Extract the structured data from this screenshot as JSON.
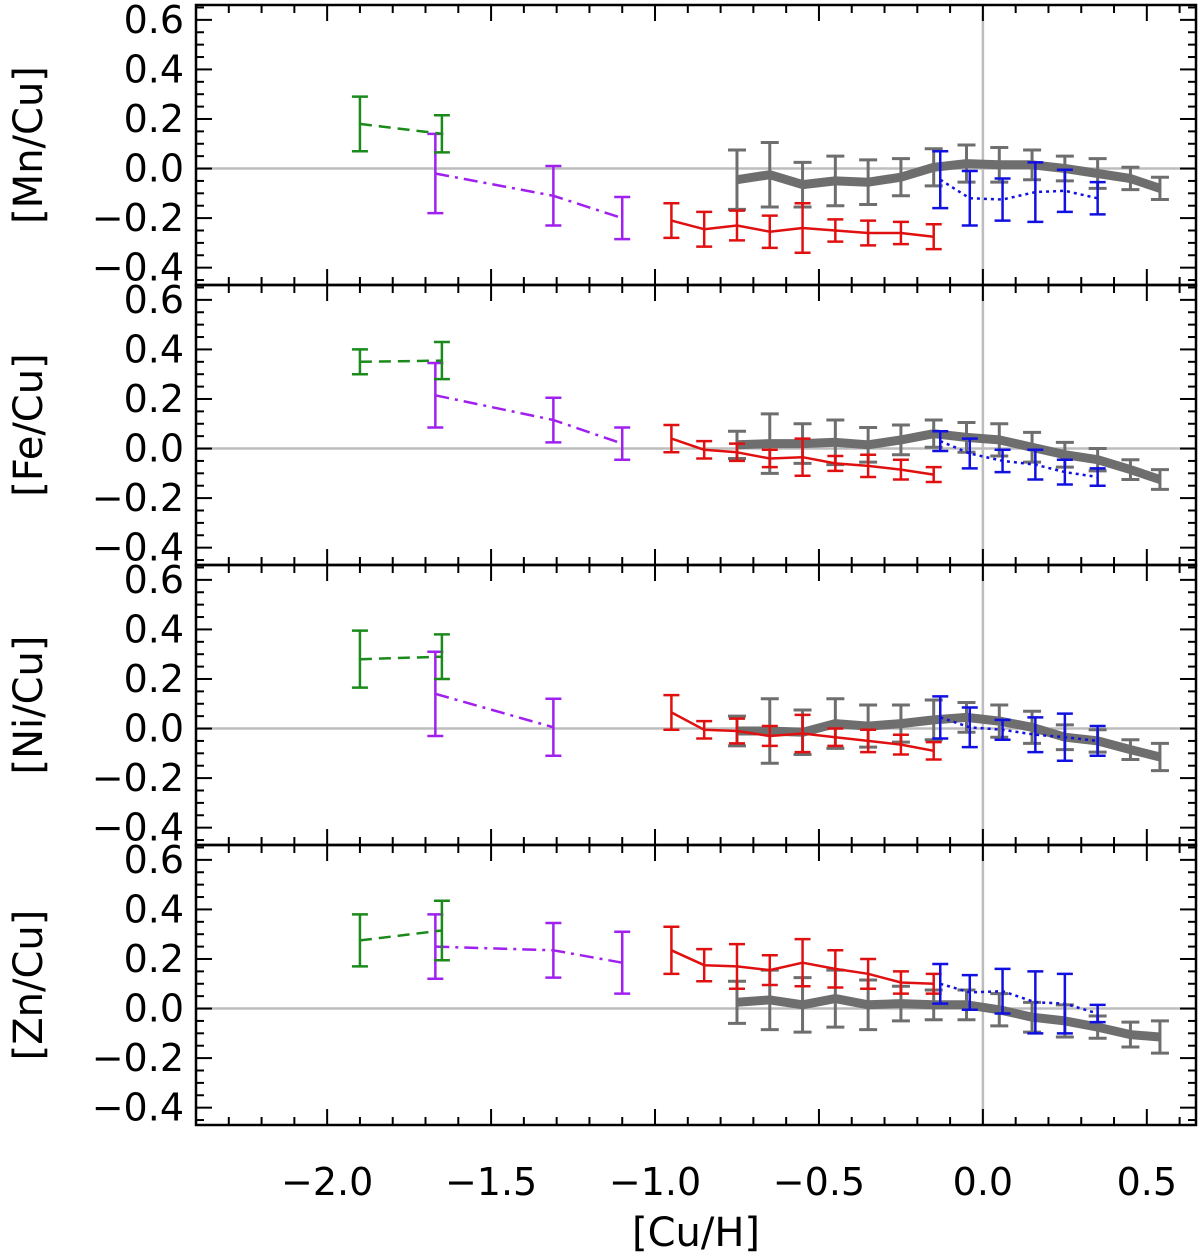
{
  "chart_data": {
    "type": "line",
    "xlabel": "[Cu/H]",
    "xlim": [
      -2.4,
      0.65
    ],
    "xticks": [
      -2.0,
      -1.5,
      -1.0,
      -0.5,
      0.0,
      0.5
    ],
    "xtick_labels": [
      "−2.0",
      "−1.5",
      "−1.0",
      "−0.5",
      "0.0",
      "0.5"
    ],
    "ylim": [
      -0.47,
      0.66
    ],
    "yticks": [
      0.6,
      0.4,
      0.2,
      0.0,
      -0.2,
      -0.4
    ],
    "ytick_labels": [
      "0.6",
      "0.4",
      "0.2",
      "0.0",
      "−0.2",
      "−0.4"
    ],
    "reference_lines": {
      "horizontal_y": 0.0,
      "vertical_x": 0.0
    },
    "panels": [
      {
        "ylabel": "[Mn/Cu]",
        "series": [
          {
            "name": "green",
            "color": "#1a8a1a",
            "style": "dashed",
            "x": [
              -1.9,
              -1.65
            ],
            "y": [
              0.18,
              0.14
            ],
            "err": [
              0.11,
              0.075
            ]
          },
          {
            "name": "purple",
            "color": "#a020f0",
            "style": "dashdot",
            "x": [
              -1.67,
              -1.31,
              -1.1
            ],
            "y": [
              -0.02,
              -0.11,
              -0.2
            ],
            "err": [
              0.16,
              0.12,
              0.085
            ]
          },
          {
            "name": "red",
            "color": "#e01010",
            "style": "solid",
            "x": [
              -0.95,
              -0.85,
              -0.75,
              -0.65,
              -0.55,
              -0.45,
              -0.35,
              -0.25,
              -0.15
            ],
            "y": [
              -0.21,
              -0.245,
              -0.23,
              -0.255,
              -0.24,
              -0.25,
              -0.26,
              -0.26,
              -0.275
            ],
            "err": [
              0.07,
              0.07,
              0.06,
              0.065,
              0.1,
              0.045,
              0.05,
              0.045,
              0.05
            ]
          },
          {
            "name": "gray",
            "color": "#6e6e6e",
            "style": "thick",
            "x": [
              -0.75,
              -0.65,
              -0.55,
              -0.45,
              -0.35,
              -0.25,
              -0.15,
              -0.05,
              0.05,
              0.15,
              0.25,
              0.35,
              0.45,
              0.54
            ],
            "y": [
              -0.045,
              -0.025,
              -0.065,
              -0.05,
              -0.055,
              -0.035,
              0.005,
              0.02,
              0.015,
              0.015,
              0.0,
              -0.02,
              -0.04,
              -0.08
            ],
            "err": [
              0.12,
              0.13,
              0.09,
              0.1,
              0.09,
              0.075,
              0.075,
              0.075,
              0.07,
              0.06,
              0.05,
              0.06,
              0.045,
              0.045
            ]
          },
          {
            "name": "blue",
            "color": "#1010e0",
            "style": "dotted",
            "x": [
              -0.13,
              -0.04,
              0.06,
              0.16,
              0.25,
              0.35
            ],
            "y": [
              -0.045,
              -0.12,
              -0.125,
              -0.095,
              -0.09,
              -0.12
            ],
            "err": [
              0.115,
              0.11,
              0.085,
              0.12,
              0.085,
              0.065
            ]
          }
        ]
      },
      {
        "ylabel": "[Fe/Cu]",
        "series": [
          {
            "name": "green",
            "color": "#1a8a1a",
            "style": "dashed",
            "x": [
              -1.9,
              -1.65
            ],
            "y": [
              0.35,
              0.355
            ],
            "err": [
              0.05,
              0.075
            ]
          },
          {
            "name": "purple",
            "color": "#a020f0",
            "style": "dashdot",
            "x": [
              -1.67,
              -1.31,
              -1.1
            ],
            "y": [
              0.215,
              0.115,
              0.02
            ],
            "err": [
              0.13,
              0.09,
              0.065
            ]
          },
          {
            "name": "red",
            "color": "#e01010",
            "style": "solid",
            "x": [
              -0.95,
              -0.85,
              -0.75,
              -0.65,
              -0.55,
              -0.45,
              -0.35,
              -0.25,
              -0.15
            ],
            "y": [
              0.04,
              -0.005,
              -0.015,
              -0.04,
              -0.035,
              -0.06,
              -0.07,
              -0.085,
              -0.105
            ],
            "err": [
              0.055,
              0.035,
              0.035,
              0.035,
              0.075,
              0.03,
              0.045,
              0.04,
              0.03
            ]
          },
          {
            "name": "gray",
            "color": "#6e6e6e",
            "style": "thick",
            "x": [
              -0.75,
              -0.65,
              -0.55,
              -0.45,
              -0.35,
              -0.25,
              -0.15,
              -0.05,
              0.05,
              0.15,
              0.25,
              0.35,
              0.45,
              0.54
            ],
            "y": [
              0.015,
              0.02,
              0.02,
              0.025,
              0.015,
              0.035,
              0.06,
              0.045,
              0.035,
              0.005,
              -0.025,
              -0.045,
              -0.085,
              -0.125
            ],
            "err": [
              0.055,
              0.12,
              0.08,
              0.09,
              0.07,
              0.06,
              0.055,
              0.06,
              0.065,
              0.06,
              0.05,
              0.045,
              0.04,
              0.04
            ]
          },
          {
            "name": "blue",
            "color": "#1010e0",
            "style": "dotted",
            "x": [
              -0.13,
              -0.04,
              0.06,
              0.16,
              0.25,
              0.35
            ],
            "y": [
              0.03,
              -0.02,
              -0.05,
              -0.065,
              -0.095,
              -0.115
            ],
            "err": [
              0.04,
              0.06,
              0.045,
              0.06,
              0.05,
              0.035
            ]
          }
        ]
      },
      {
        "ylabel": "[Ni/Cu]",
        "series": [
          {
            "name": "green",
            "color": "#1a8a1a",
            "style": "dashed",
            "x": [
              -1.9,
              -1.65
            ],
            "y": [
              0.28,
              0.29
            ],
            "err": [
              0.115,
              0.09
            ]
          },
          {
            "name": "purple",
            "color": "#a020f0",
            "style": "dashdot",
            "x": [
              -1.67,
              -1.31
            ],
            "y": [
              0.14,
              0.005
            ],
            "err": [
              0.17,
              0.115
            ]
          },
          {
            "name": "red",
            "color": "#e01010",
            "style": "solid",
            "x": [
              -0.95,
              -0.85,
              -0.75,
              -0.65,
              -0.55,
              -0.45,
              -0.35,
              -0.25,
              -0.15
            ],
            "y": [
              0.065,
              -0.005,
              -0.01,
              -0.03,
              -0.02,
              -0.035,
              -0.05,
              -0.065,
              -0.09
            ],
            "err": [
              0.07,
              0.035,
              0.05,
              0.04,
              0.075,
              0.035,
              0.045,
              0.04,
              0.035
            ]
          },
          {
            "name": "gray",
            "color": "#6e6e6e",
            "style": "thick",
            "x": [
              -0.75,
              -0.65,
              -0.55,
              -0.45,
              -0.35,
              -0.25,
              -0.15,
              -0.05,
              0.05,
              0.15,
              0.25,
              0.35,
              0.45,
              0.54
            ],
            "y": [
              -0.01,
              -0.01,
              -0.015,
              0.02,
              0.01,
              0.02,
              0.035,
              0.045,
              0.03,
              0.005,
              -0.035,
              -0.05,
              -0.085,
              -0.115
            ],
            "err": [
              0.06,
              0.13,
              0.09,
              0.1,
              0.085,
              0.075,
              0.08,
              0.06,
              0.065,
              0.065,
              0.05,
              0.045,
              0.04,
              0.055
            ]
          },
          {
            "name": "blue",
            "color": "#1010e0",
            "style": "dotted",
            "x": [
              -0.13,
              -0.04,
              0.06,
              0.16,
              0.25,
              0.35
            ],
            "y": [
              0.045,
              0.005,
              -0.005,
              -0.025,
              -0.035,
              -0.05
            ],
            "err": [
              0.085,
              0.08,
              0.04,
              0.07,
              0.095,
              0.06
            ]
          }
        ]
      },
      {
        "ylabel": "[Zn/Cu]",
        "series": [
          {
            "name": "green",
            "color": "#1a8a1a",
            "style": "dashed",
            "x": [
              -1.9,
              -1.65
            ],
            "y": [
              0.275,
              0.315
            ],
            "err": [
              0.105,
              0.12
            ]
          },
          {
            "name": "purple",
            "color": "#a020f0",
            "style": "dashdot",
            "x": [
              -1.67,
              -1.31,
              -1.1
            ],
            "y": [
              0.25,
              0.235,
              0.185
            ],
            "err": [
              0.13,
              0.11,
              0.125
            ]
          },
          {
            "name": "red",
            "color": "#e01010",
            "style": "solid",
            "x": [
              -0.95,
              -0.85,
              -0.75,
              -0.65,
              -0.55,
              -0.45,
              -0.35,
              -0.25,
              -0.15
            ],
            "y": [
              0.235,
              0.175,
              0.17,
              0.155,
              0.185,
              0.16,
              0.14,
              0.105,
              0.1
            ],
            "err": [
              0.095,
              0.065,
              0.09,
              0.06,
              0.095,
              0.075,
              0.06,
              0.045,
              0.04
            ]
          },
          {
            "name": "gray",
            "color": "#6e6e6e",
            "style": "thick",
            "x": [
              -0.75,
              -0.65,
              -0.55,
              -0.45,
              -0.35,
              -0.25,
              -0.15,
              -0.05,
              0.05,
              0.15,
              0.25,
              0.35,
              0.45,
              0.54
            ],
            "y": [
              0.025,
              0.035,
              0.015,
              0.04,
              0.015,
              0.02,
              0.015,
              0.015,
              -0.005,
              -0.035,
              -0.05,
              -0.075,
              -0.105,
              -0.115
            ],
            "err": [
              0.085,
              0.12,
              0.11,
              0.115,
              0.1,
              0.07,
              0.06,
              0.06,
              0.065,
              0.06,
              0.065,
              0.045,
              0.05,
              0.065
            ]
          },
          {
            "name": "blue",
            "color": "#1010e0",
            "style": "dotted",
            "x": [
              -0.13,
              -0.04,
              0.06,
              0.16,
              0.25,
              0.35
            ],
            "y": [
              0.1,
              0.065,
              0.07,
              0.025,
              0.02,
              -0.02
            ],
            "err": [
              0.08,
              0.07,
              0.09,
              0.125,
              0.12,
              0.035
            ]
          }
        ]
      }
    ]
  }
}
